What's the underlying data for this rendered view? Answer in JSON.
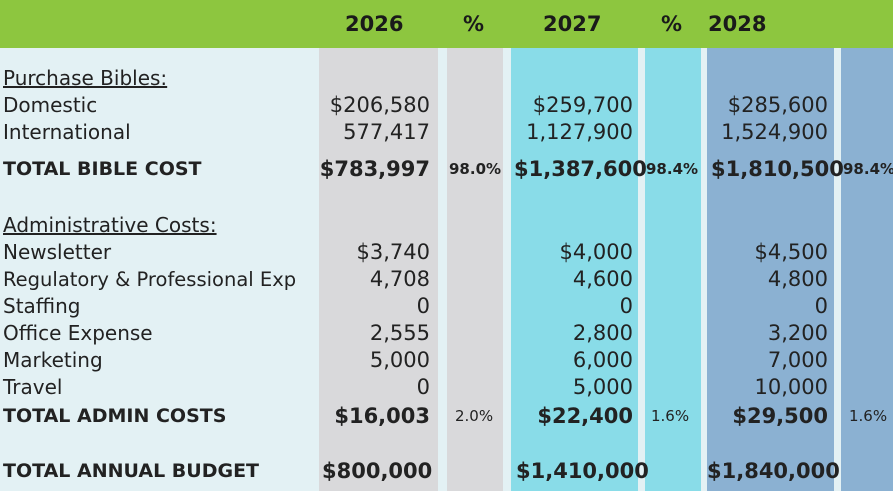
{
  "header": {
    "y2026": "2026",
    "pct1": "%",
    "y2027": "2027",
    "pct2": "%",
    "y2028": "2028"
  },
  "purchase": {
    "heading": "Purchase Bibles:",
    "domestic": {
      "label": "Domestic",
      "v2026": "$206,580",
      "v2027": "$259,700",
      "v2028": "$285,600"
    },
    "international": {
      "label": "International",
      "v2026": "577,417",
      "v2027": "1,127,900",
      "v2028": "1,524,900"
    },
    "total": {
      "label": "TOTAL BIBLE COST",
      "v2026": "$783,997",
      "p2026": "98.0%",
      "v2027": "$1,387,600",
      "p2027": "98.4%",
      "v2028": "$1,810,500",
      "p2028": "98.4%"
    }
  },
  "admin": {
    "heading": "Administrative Costs:",
    "newsletter": {
      "label": "Newsletter",
      "v2026": "$3,740",
      "v2027": "$4,000",
      "v2028": "$4,500"
    },
    "regulatory": {
      "label": "Regulatory & Professional Exp",
      "v2026": "4,708",
      "v2027": "4,600",
      "v2028": "4,800"
    },
    "staffing": {
      "label": "Staffing",
      "v2026": "0",
      "v2027": "0",
      "v2028": "0"
    },
    "office": {
      "label": "Office Expense",
      "v2026": "2,555",
      "v2027": "2,800",
      "v2028": "3,200"
    },
    "marketing": {
      "label": "Marketing",
      "v2026": "5,000",
      "v2027": "6,000",
      "v2028": "7,000"
    },
    "travel": {
      "label": "Travel",
      "v2026": "0",
      "v2027": "5,000",
      "v2028": "10,000"
    },
    "total": {
      "label": "TOTAL ADMIN COSTS",
      "v2026": "$16,003",
      "p2026": "2.0%",
      "v2027": "$22,400",
      "p2027": "1.6%",
      "v2028": "$29,500",
      "p2028": "1.6%"
    }
  },
  "annual": {
    "label": "TOTAL ANNUAL BUDGET",
    "v2026": "$800,000",
    "v2027": "$1,410,000",
    "v2028": "$1,840,000"
  },
  "colors": {
    "header": "#8dc63f",
    "col2026": "#d9d9db",
    "col2027": "#89dce8",
    "col2028": "#8bb1d2",
    "background": "#e3f1f4"
  }
}
